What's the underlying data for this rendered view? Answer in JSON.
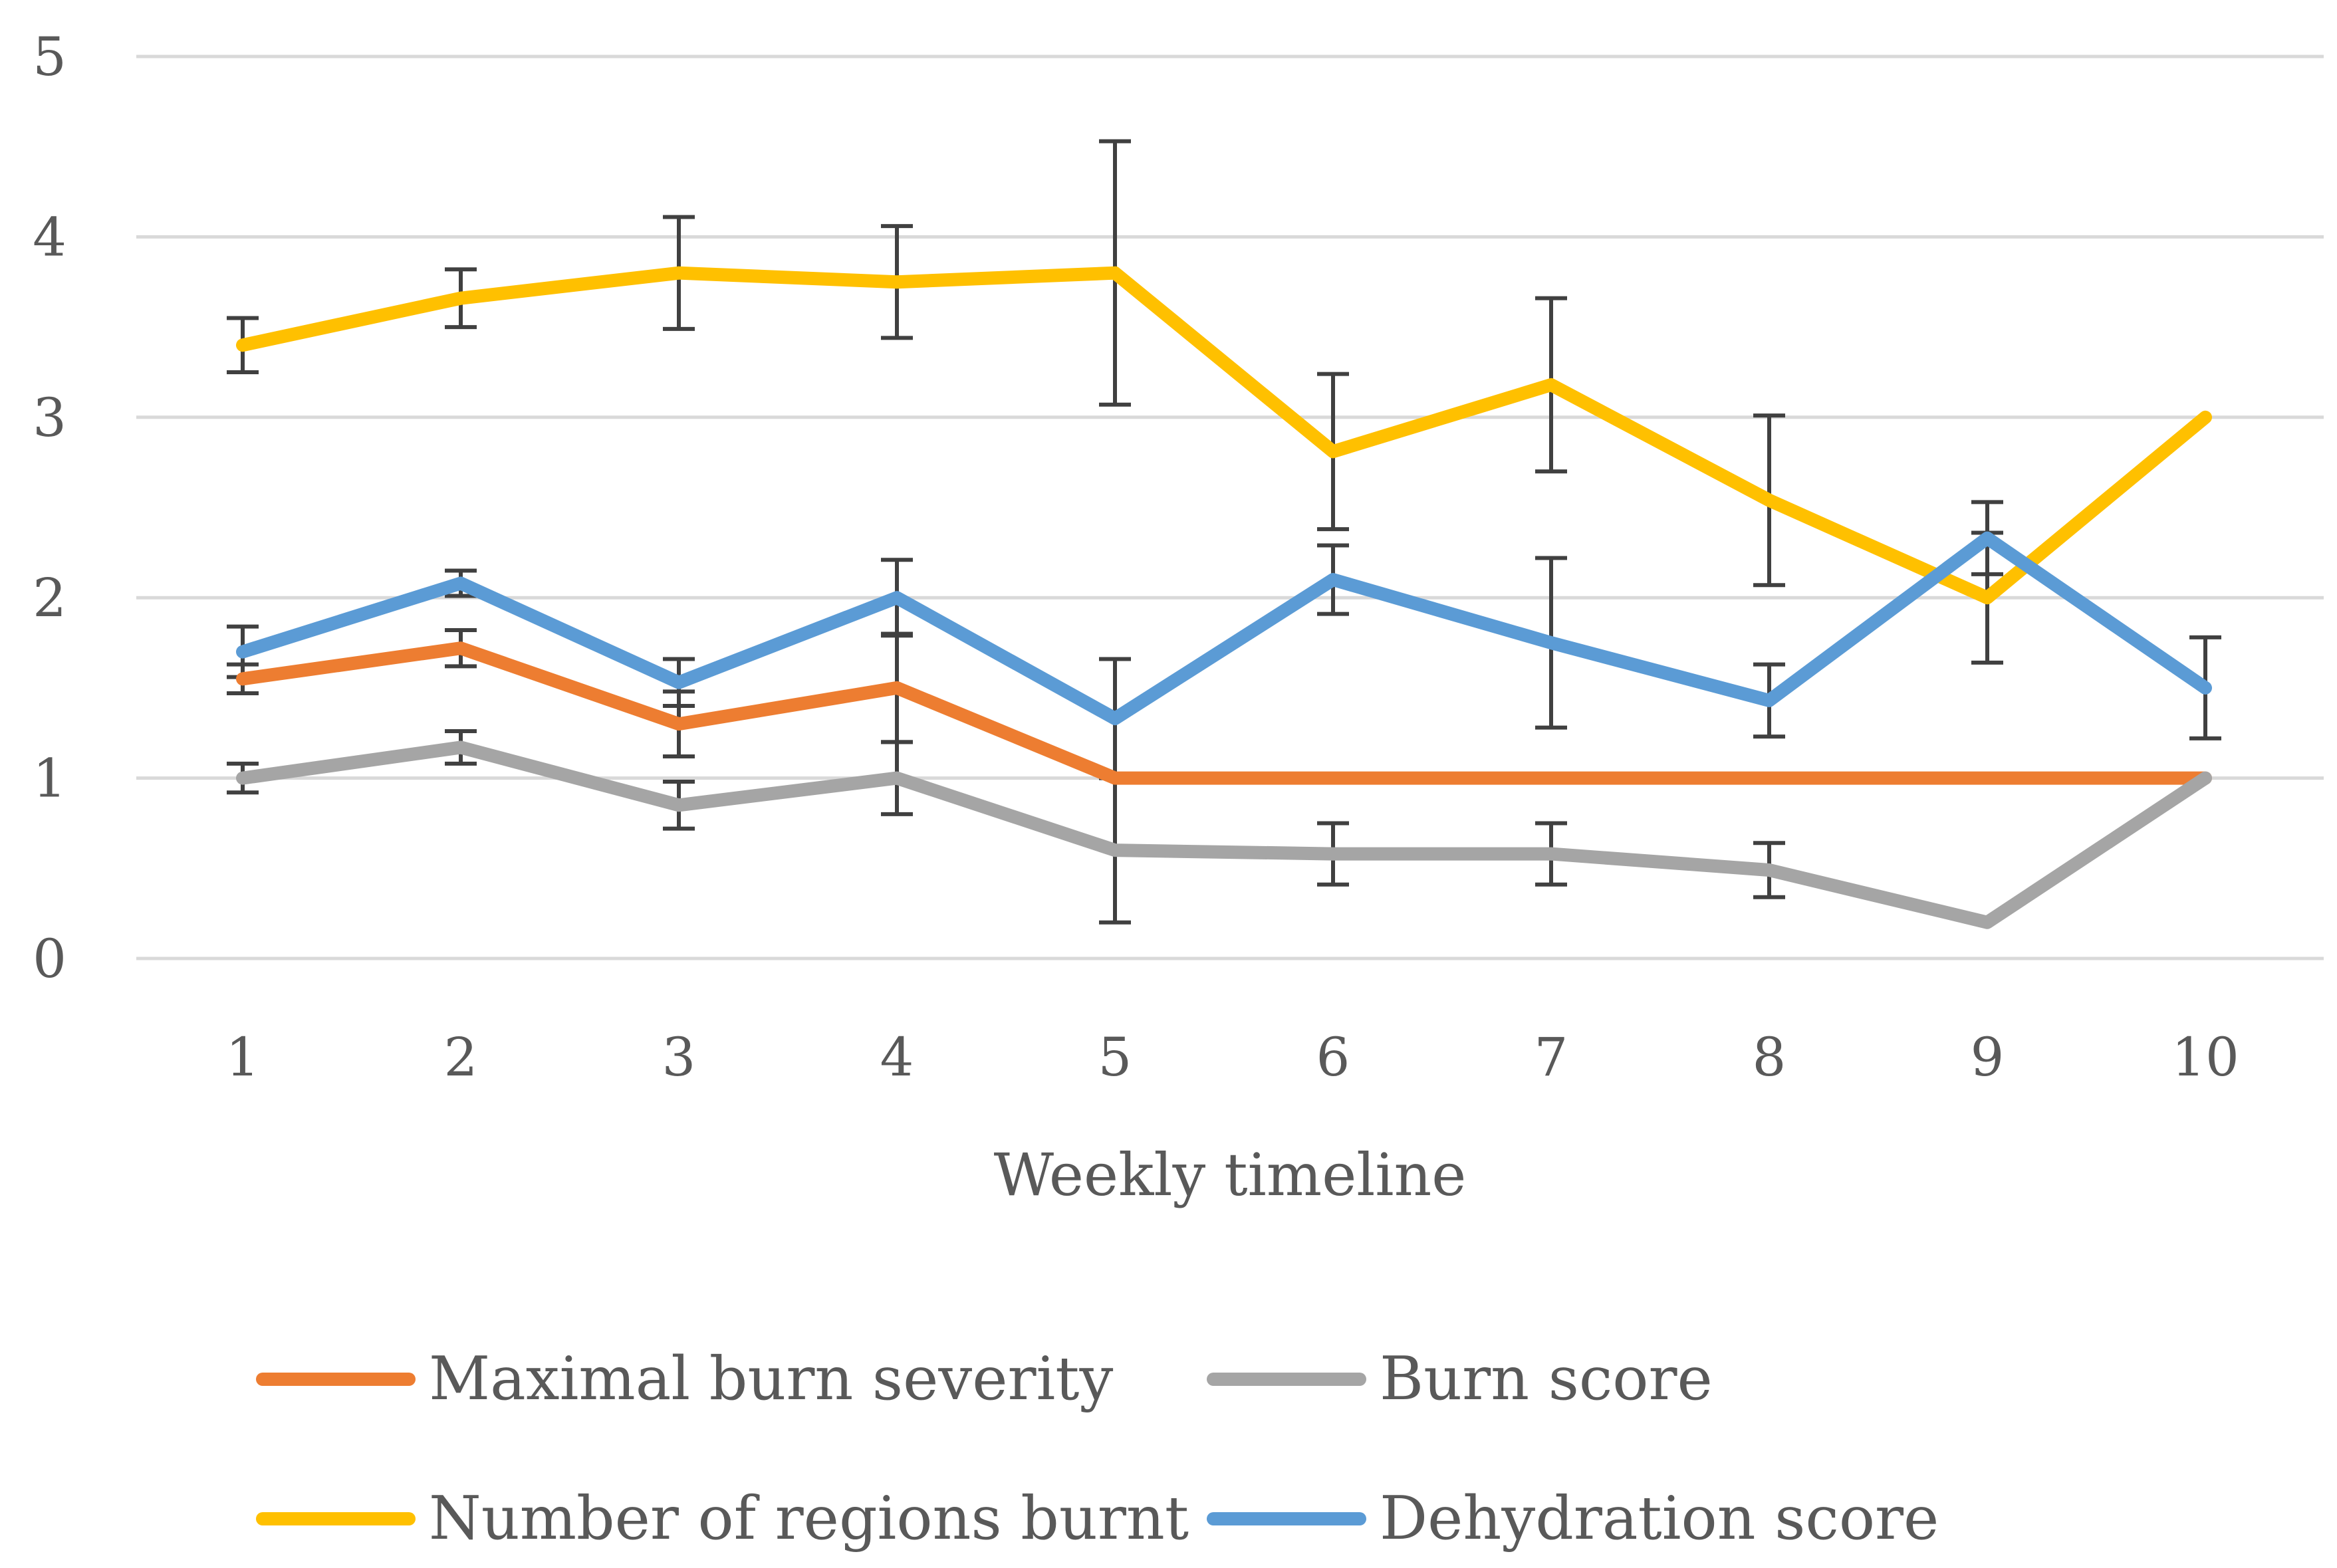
{
  "chart_data": {
    "type": "line",
    "title": "",
    "xlabel": "Weekly timeline",
    "ylabel": "",
    "ylim": [
      0,
      5
    ],
    "yticks": [
      0,
      1,
      2,
      3,
      4,
      5
    ],
    "grid": true,
    "legend_position": "bottom",
    "categories": [
      "1",
      "2",
      "3",
      "4",
      "5",
      "6",
      "7",
      "8",
      "9",
      "10"
    ],
    "series": [
      {
        "name": "Maximal burn severity",
        "color": "#ED7D31",
        "values": [
          1.55,
          1.72,
          1.3,
          1.5,
          1.0,
          1.0,
          1.0,
          1.0,
          1.0,
          1.0
        ],
        "error": [
          0.08,
          0.1,
          0.18,
          0.3,
          null,
          null,
          null,
          null,
          null,
          null
        ]
      },
      {
        "name": "Burn score",
        "color": "#A5A5A5",
        "values": [
          1.0,
          1.17,
          0.85,
          1.0,
          0.6,
          0.58,
          0.58,
          0.49,
          0.2,
          1.0
        ],
        "error": [
          0.08,
          0.09,
          0.13,
          0.2,
          0.4,
          0.17,
          0.17,
          0.15,
          null,
          null
        ]
      },
      {
        "name": "Number of regions burnt",
        "color": "#FFC000",
        "values": [
          3.4,
          3.66,
          3.8,
          3.75,
          3.8,
          2.81,
          3.18,
          2.54,
          2.0,
          3.0
        ],
        "error": [
          0.15,
          0.16,
          0.31,
          0.31,
          0.73,
          0.43,
          0.48,
          0.47,
          0.36,
          null
        ]
      },
      {
        "name": "Dehydration score",
        "color": "#5B9BD5",
        "values": [
          1.7,
          2.08,
          1.53,
          2.0,
          1.33,
          2.1,
          1.75,
          1.43,
          2.33,
          1.5
        ],
        "error": [
          0.14,
          0.07,
          0.13,
          0.21,
          0.33,
          0.19,
          0.47,
          0.2,
          0.2,
          0.28
        ]
      }
    ]
  }
}
